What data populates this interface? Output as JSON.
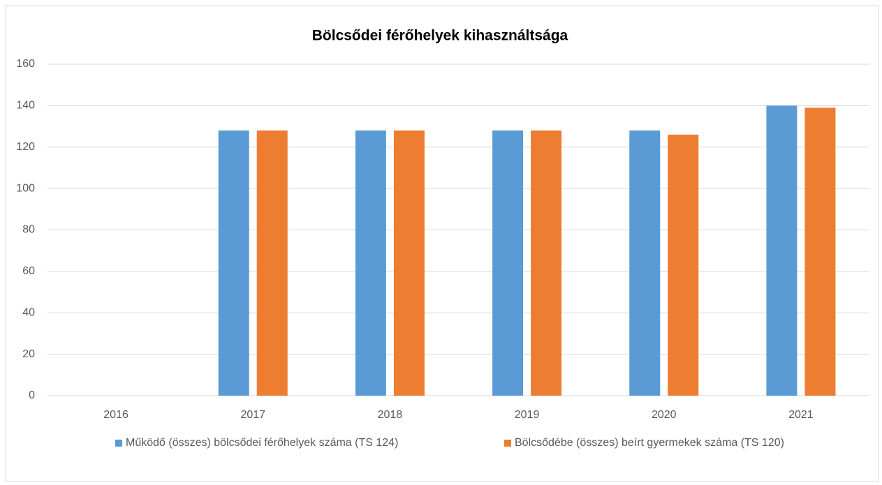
{
  "chart_data": {
    "type": "bar",
    "title": "Bölcsődei férőhelyek kihasználtsága",
    "categories": [
      "2016",
      "2017",
      "2018",
      "2019",
      "2020",
      "2021"
    ],
    "series": [
      {
        "name": "Működő (összes) bölcsődei férőhelyek száma (TS 124)",
        "color": "#5b9bd5",
        "values": [
          null,
          128,
          128,
          128,
          128,
          140
        ]
      },
      {
        "name": "Bölcsődébe (összes) beírt gyermekek száma (TS 120)",
        "color": "#ed7d31",
        "values": [
          null,
          128,
          128,
          128,
          126,
          139
        ]
      }
    ],
    "ylim": [
      0,
      160
    ],
    "yticks": [
      0,
      20,
      40,
      60,
      80,
      100,
      120,
      140,
      160
    ],
    "grid": true,
    "legend": "bottom"
  }
}
